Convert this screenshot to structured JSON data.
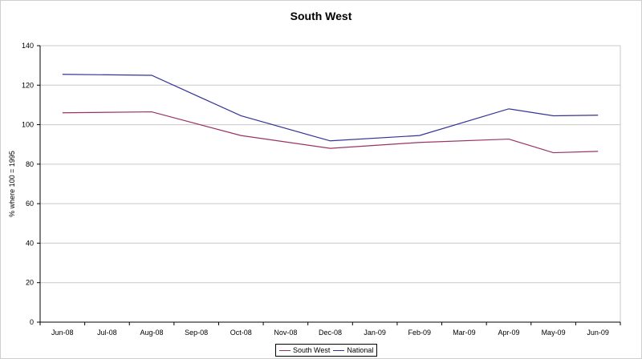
{
  "chart_data": {
    "type": "line",
    "title": "South West",
    "xlabel": "",
    "ylabel": "% where 100 = 1995",
    "ylim": [
      0,
      140
    ],
    "yticks": [
      0,
      20,
      40,
      60,
      80,
      100,
      120,
      140
    ],
    "grid": true,
    "legend_position": "bottom",
    "categories": [
      "Jun-08",
      "Jul-08",
      "Aug-08",
      "Sep-08",
      "Oct-08",
      "Nov-08",
      "Dec-08",
      "Jan-09",
      "Feb-09",
      "Mar-09",
      "Apr-09",
      "May-09",
      "Jun-09"
    ],
    "series": [
      {
        "name": "South West",
        "color": "#993366",
        "values": [
          106,
          null,
          106.5,
          null,
          94.5,
          null,
          88,
          null,
          91,
          null,
          92.7,
          85.8,
          86.5
        ]
      },
      {
        "name": "National",
        "color": "#333399",
        "values": [
          125.5,
          null,
          125,
          null,
          104.5,
          null,
          91.8,
          null,
          94.5,
          null,
          108,
          104.5,
          104.8
        ]
      }
    ]
  }
}
